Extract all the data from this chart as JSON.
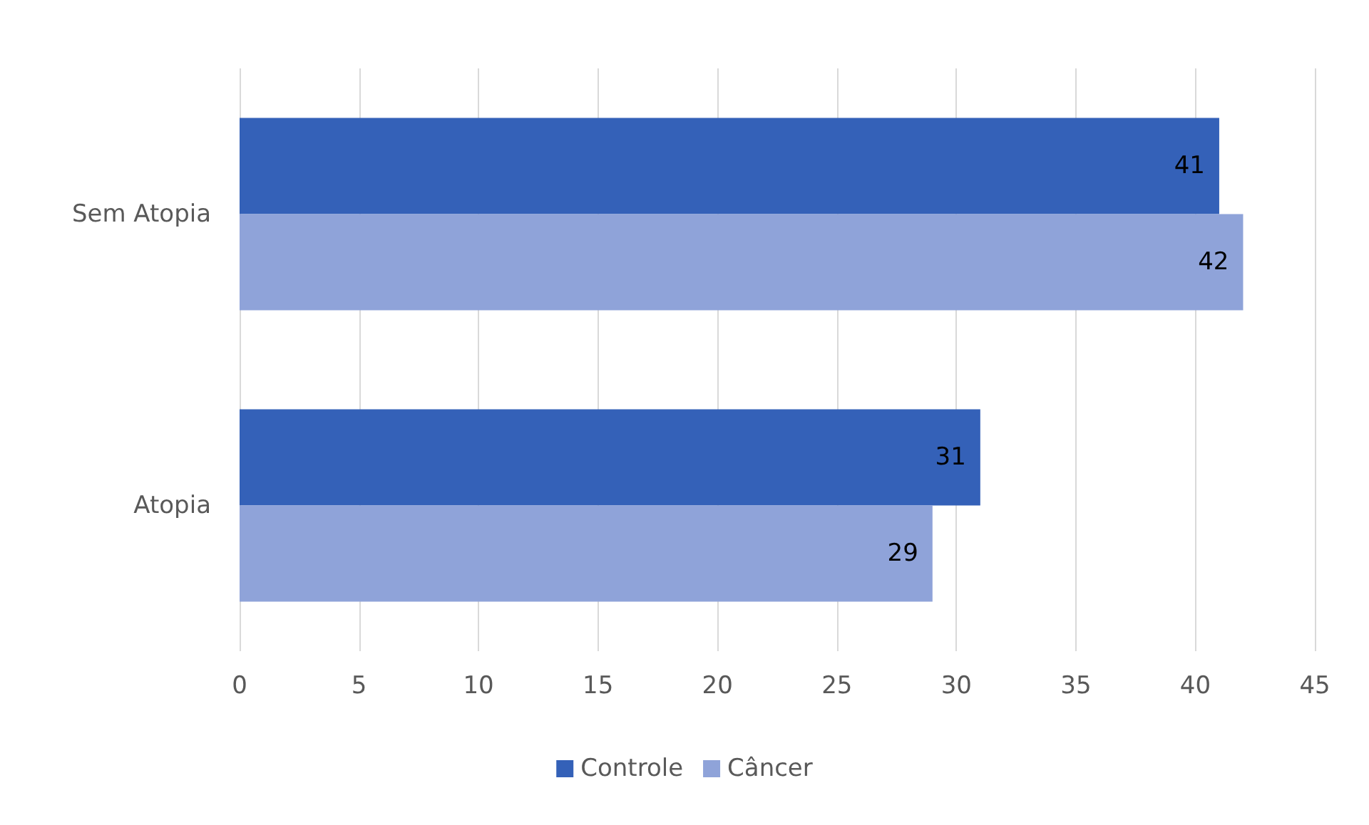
{
  "chart_data": {
    "type": "bar",
    "orientation": "horizontal",
    "categories": [
      "Sem Atopia",
      "Atopia"
    ],
    "series": [
      {
        "name": "Controle",
        "color": "#3461b8",
        "values": [
          41,
          31
        ]
      },
      {
        "name": "Câncer",
        "color": "#8fa3d9",
        "values": [
          42,
          29
        ]
      }
    ],
    "xlim": [
      0,
      45
    ],
    "xticks": [
      0,
      5,
      10,
      15,
      20,
      25,
      30,
      35,
      40,
      45
    ],
    "grid": "x",
    "legend": "bottom",
    "data_labels": true
  }
}
